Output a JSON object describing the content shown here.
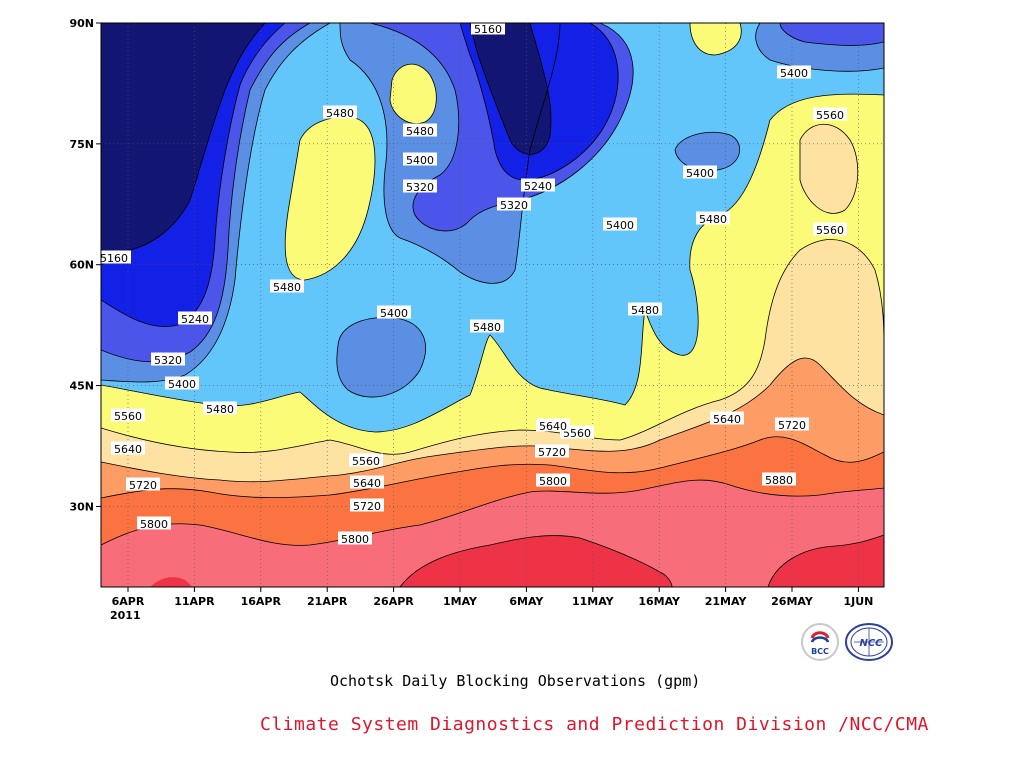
{
  "chart_data": {
    "type": "heatmap",
    "subtype": "filled contour (latitude vs. time)",
    "title": "Ochotsk Daily Blocking Observations (gpm)",
    "xlabel": "",
    "ylabel": "",
    "x_ticks": [
      "6APR",
      "11APR",
      "16APR",
      "21APR",
      "26APR",
      "1MAY",
      "6MAY",
      "11MAY",
      "16MAY",
      "21MAY",
      "26MAY",
      "1JUN"
    ],
    "x_year": "2011",
    "y_ticks": [
      "90N",
      "75N",
      "60N",
      "45N",
      "30N"
    ],
    "y_range_deg": [
      20,
      90
    ],
    "grid": "dotted",
    "contour_levels": [
      5160,
      5240,
      5320,
      5400,
      5480,
      5560,
      5640,
      5720,
      5800,
      5880
    ],
    "fill_colors": {
      "below_5160": "#121572",
      "5160_5240": "#1320e6",
      "5240_5320": "#4b55ea",
      "5320_5400": "#5b8fe4",
      "5400_5480": "#63c6fb",
      "5480_5560": "#fcfb78",
      "5560_5640": "#fde2a2",
      "5640_5720": "#fd9c64",
      "5720_5800": "#fc7342",
      "5800_5880": "#f76d7a",
      "above_5880": "#ef3346"
    },
    "contour_labels": [
      "5160",
      "5160",
      "5240",
      "5240",
      "5320",
      "5320",
      "5320",
      "5400",
      "5400",
      "5400",
      "5400",
      "5400",
      "5400",
      "5480",
      "5480",
      "5480",
      "5480",
      "5480",
      "5480",
      "5480",
      "5560",
      "5560",
      "5560",
      "5560",
      "5560",
      "5640",
      "5640",
      "5640",
      "5640",
      "5720",
      "5720",
      "5720",
      "5720",
      "5800",
      "5800",
      "5800",
      "5880"
    ]
  },
  "captions": {
    "chart_caption": "Ochotsk Daily Blocking Observations (gpm)",
    "org_caption": "Climate System Diagnostics and Prediction Division /NCC/CMA"
  },
  "logos": {
    "bcc_logo_text": "BCC",
    "ncc_logo_text": "NCC"
  }
}
